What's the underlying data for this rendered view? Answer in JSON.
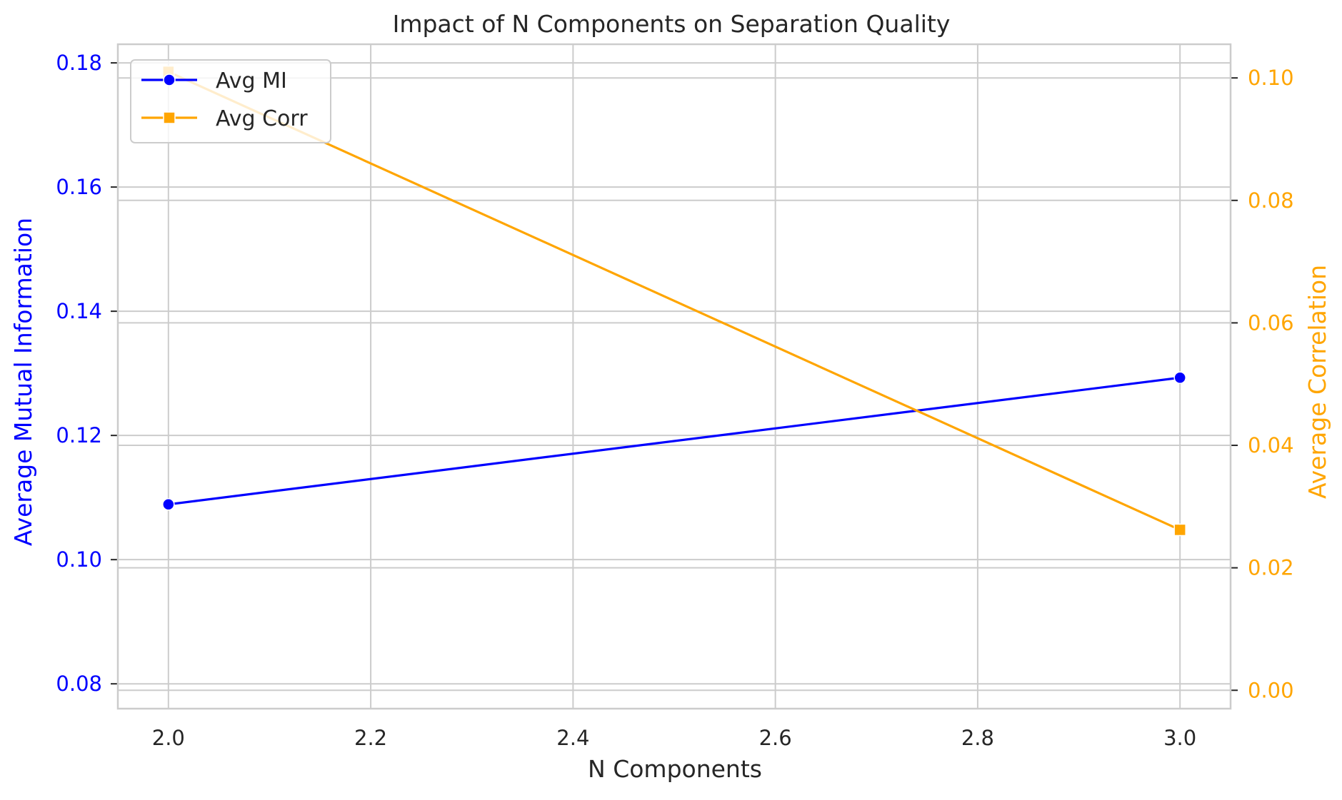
{
  "chart_data": {
    "type": "line",
    "title": "Impact of N Components on Separation Quality",
    "xlabel": "N Components",
    "ylabel_left": "Average Mutual Information",
    "ylabel_right": "Average Correlation",
    "x": [
      2.0,
      3.0
    ],
    "xlim": [
      1.95,
      3.05
    ],
    "xticks": [
      "2.0",
      "2.2",
      "2.4",
      "2.6",
      "2.8",
      "3.0"
    ],
    "ylim_left": [
      0.076,
      0.183
    ],
    "yticks_left": [
      "0.08",
      "0.10",
      "0.12",
      "0.14",
      "0.16",
      "0.18"
    ],
    "ylim_right": [
      -0.003,
      0.1055
    ],
    "yticks_right": [
      "0.00",
      "0.02",
      "0.04",
      "0.06",
      "0.08",
      "0.10"
    ],
    "series": [
      {
        "name": "Avg MI",
        "axis": "left",
        "values": [
          0.1089,
          0.1293
        ],
        "color": "#0000ff",
        "marker": "circle"
      },
      {
        "name": "Avg Corr",
        "axis": "right",
        "values": [
          0.101,
          0.0262
        ],
        "color": "#ffa500",
        "marker": "square"
      }
    ],
    "grid": true,
    "legend": "top-left",
    "colors": {
      "left_axis": "#0000ff",
      "right_axis": "#ffa500",
      "text": "#262626",
      "grid": "#cccccc"
    }
  }
}
